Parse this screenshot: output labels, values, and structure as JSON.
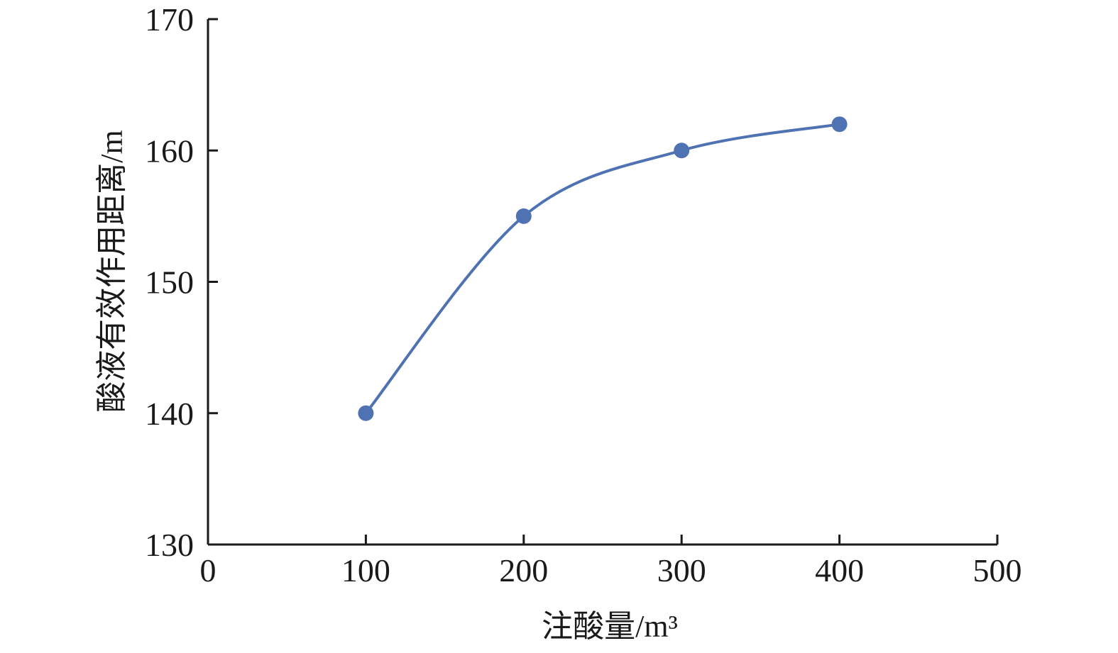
{
  "chart_data": {
    "type": "line",
    "title": "",
    "xlabel": "注酸量/m³",
    "ylabel": "酸液有效作用距离/m",
    "xlim": [
      0,
      500
    ],
    "ylim": [
      130,
      170
    ],
    "x_ticks": [
      "0",
      "100",
      "200",
      "300",
      "400",
      "500"
    ],
    "y_ticks": [
      "130",
      "140",
      "150",
      "160",
      "170"
    ],
    "grid": false,
    "legend": "none",
    "smooth": true,
    "series": [
      {
        "color": "#4f72b3",
        "x": [
          100,
          200,
          300,
          400
        ],
        "y": [
          140,
          155,
          160,
          162
        ]
      }
    ]
  }
}
